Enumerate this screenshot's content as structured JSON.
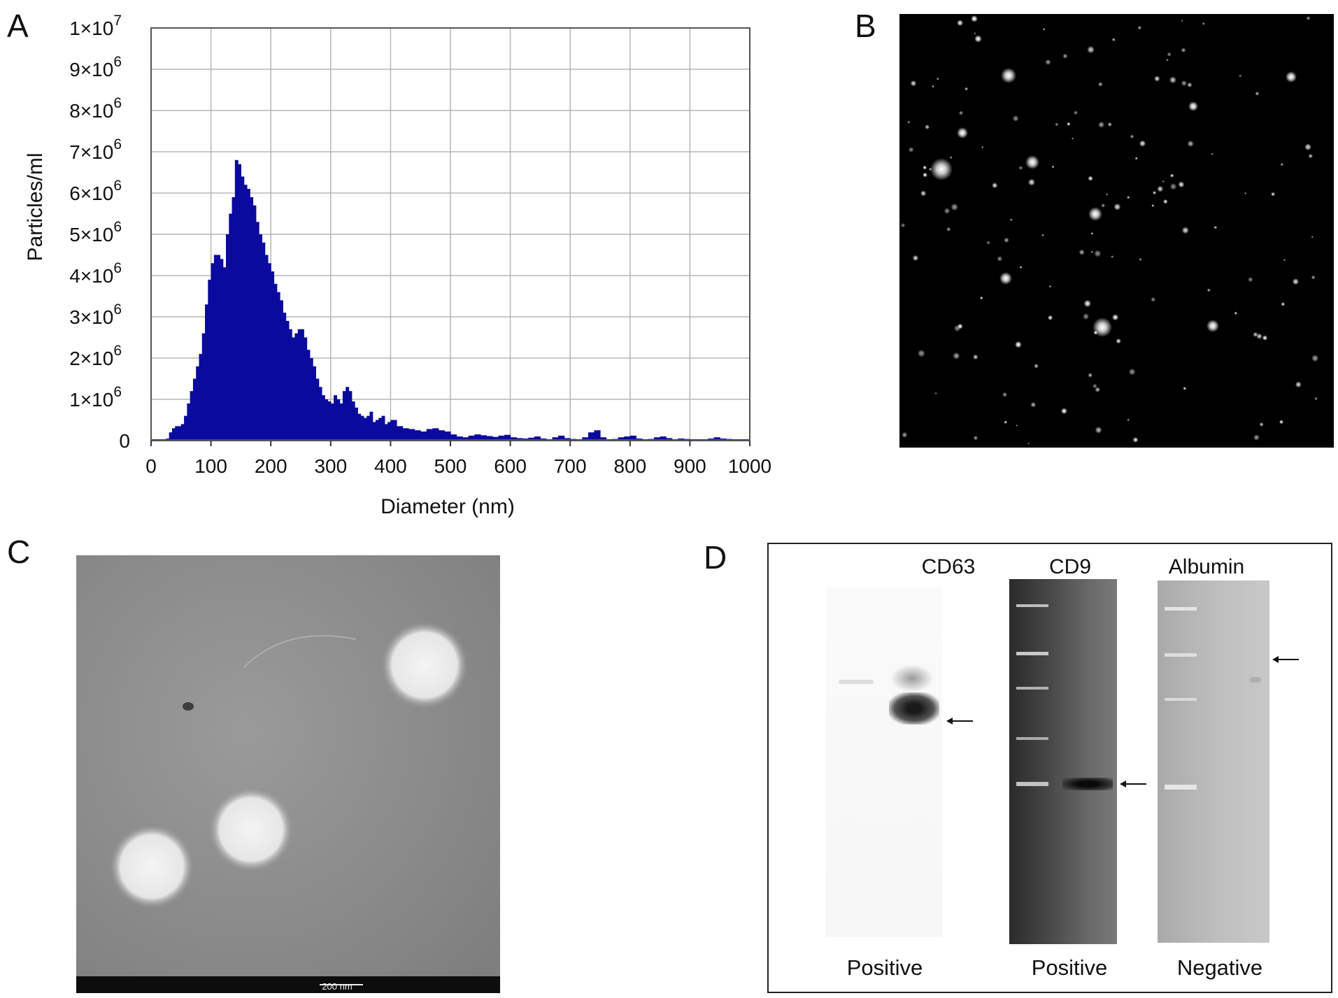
{
  "panels": {
    "a": {
      "letter": "A"
    },
    "b": {
      "letter": "B"
    },
    "c": {
      "letter": "C",
      "scale_bar_label": "200 nm"
    },
    "d": {
      "letter": "D",
      "blots": [
        {
          "target": "CD63",
          "result": "Positive"
        },
        {
          "target": "CD9",
          "result": "Positive"
        },
        {
          "target": "Albumin",
          "result": "Negative"
        }
      ]
    }
  },
  "chart_data": {
    "type": "bar",
    "xlabel": "Diameter (nm)",
    "ylabel": "Particles/ml",
    "xlim": [
      0,
      1000
    ],
    "ylim": [
      0,
      10000000
    ],
    "grid": true,
    "bar_color": "#0a0a9e",
    "x_ticks": [
      "0",
      "100",
      "200",
      "300",
      "400",
      "500",
      "600",
      "700",
      "800",
      "900",
      "1000"
    ],
    "y_ticks": [
      {
        "base": "0",
        "exp": ""
      },
      {
        "base": "1×10",
        "exp": "6"
      },
      {
        "base": "2×10",
        "exp": "6"
      },
      {
        "base": "3×10",
        "exp": "6"
      },
      {
        "base": "4×10",
        "exp": "6"
      },
      {
        "base": "5×10",
        "exp": "6"
      },
      {
        "base": "6×10",
        "exp": "6"
      },
      {
        "base": "7×10",
        "exp": "6"
      },
      {
        "base": "8×10",
        "exp": "6"
      },
      {
        "base": "9×10",
        "exp": "6"
      },
      {
        "base": "1×10",
        "exp": "7"
      }
    ],
    "x": [
      25,
      30,
      35,
      40,
      45,
      50,
      55,
      60,
      65,
      70,
      75,
      80,
      85,
      90,
      95,
      100,
      105,
      110,
      115,
      120,
      125,
      130,
      135,
      140,
      145,
      150,
      155,
      160,
      165,
      170,
      175,
      180,
      185,
      190,
      195,
      200,
      205,
      210,
      215,
      220,
      225,
      230,
      235,
      240,
      245,
      250,
      255,
      260,
      265,
      270,
      275,
      280,
      285,
      290,
      295,
      300,
      305,
      310,
      315,
      320,
      325,
      330,
      335,
      340,
      345,
      350,
      355,
      360,
      365,
      370,
      375,
      380,
      385,
      390,
      395,
      400,
      410,
      420,
      430,
      440,
      450,
      460,
      470,
      480,
      490,
      500,
      510,
      520,
      530,
      540,
      550,
      560,
      570,
      580,
      590,
      600,
      610,
      620,
      630,
      640,
      650,
      660,
      670,
      680,
      690,
      700,
      710,
      720,
      730,
      740,
      750,
      760,
      770,
      780,
      790,
      800,
      810,
      820,
      830,
      840,
      850,
      860,
      870,
      880,
      890,
      900,
      910,
      920,
      930,
      940,
      950,
      960,
      970,
      980,
      990
    ],
    "values": [
      50000,
      200000,
      300000,
      350000,
      350000,
      400000,
      600000,
      900000,
      1200000,
      1500000,
      1800000,
      2100000,
      2600000,
      3300000,
      3900000,
      4300000,
      4500000,
      4500000,
      4400000,
      4200000,
      5000000,
      5500000,
      5900000,
      6800000,
      6700000,
      6400000,
      6200000,
      6100000,
      5900000,
      5700000,
      5300000,
      5000000,
      4800000,
      4500000,
      4300000,
      4100000,
      3800000,
      3600000,
      3400000,
      3100000,
      2900000,
      2700000,
      2500000,
      2600000,
      2700000,
      2700000,
      2500000,
      2200000,
      2000000,
      1800000,
      1500000,
      1300000,
      1100000,
      1000000,
      950000,
      900000,
      1100000,
      1000000,
      900000,
      1200000,
      1300000,
      1200000,
      950000,
      800000,
      650000,
      600000,
      550000,
      600000,
      700000,
      450000,
      500000,
      550000,
      600000,
      400000,
      450000,
      500000,
      350000,
      300000,
      280000,
      250000,
      220000,
      280000,
      300000,
      250000,
      220000,
      150000,
      100000,
      80000,
      120000,
      150000,
      130000,
      110000,
      90000,
      120000,
      140000,
      80000,
      60000,
      50000,
      70000,
      100000,
      50000,
      30000,
      80000,
      120000,
      60000,
      40000,
      30000,
      80000,
      200000,
      250000,
      80000,
      30000,
      40000,
      80000,
      100000,
      120000,
      50000,
      30000,
      40000,
      80000,
      100000,
      60000,
      30000,
      50000,
      40000,
      30000,
      20000,
      30000,
      50000,
      80000,
      50000,
      40000,
      30000,
      20000,
      10000
    ]
  }
}
